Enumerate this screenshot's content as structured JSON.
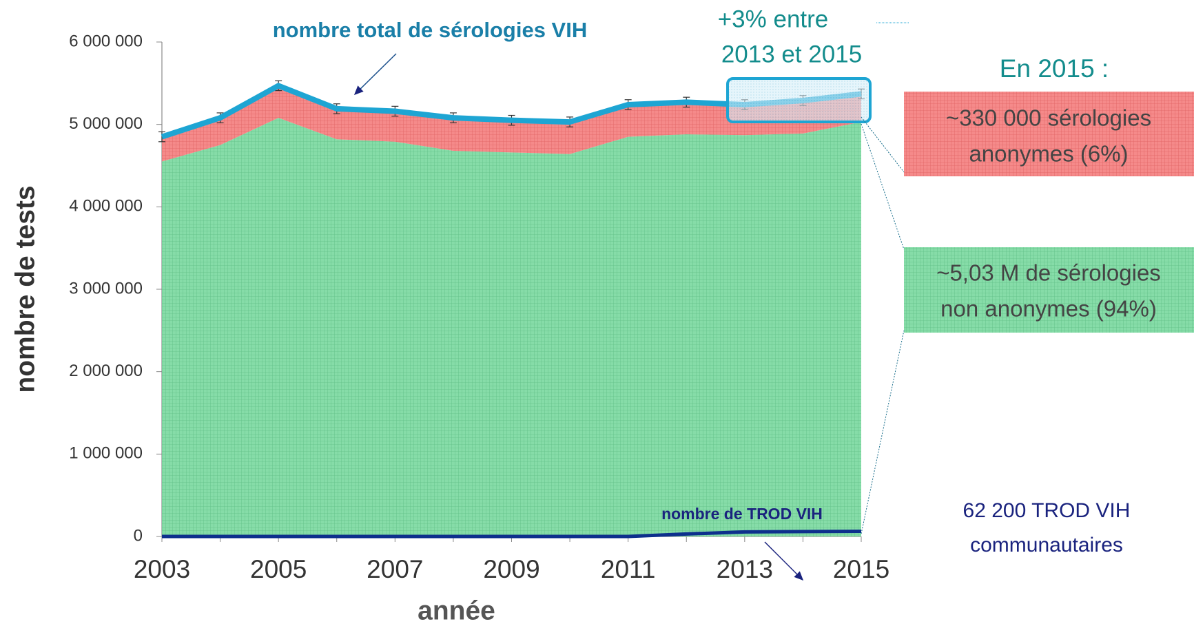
{
  "chart_data": {
    "type": "area",
    "x_label": "année",
    "y_label": "nombre de tests",
    "x": [
      2003,
      2004,
      2005,
      2006,
      2007,
      2008,
      2009,
      2010,
      2011,
      2012,
      2013,
      2014,
      2015
    ],
    "xlim": [
      2003,
      2015
    ],
    "xticks": [
      2003,
      2005,
      2007,
      2009,
      2011,
      2013,
      2015
    ],
    "ylim": [
      0,
      6000000
    ],
    "yticks": [
      0,
      {
        "value": 1000000,
        "label": "1 000 000"
      },
      {
        "value": 2000000,
        "label": "2 000 000"
      },
      {
        "value": 3000000,
        "label": "3 000 000"
      },
      {
        "value": 4000000,
        "label": "4 000 000"
      },
      {
        "value": 5000000,
        "label": "5 000 000"
      },
      {
        "value": 6000000,
        "label": "6 000 000"
      }
    ],
    "series": [
      {
        "color": "#86dca8",
        "stack": true,
        "values": [
          4550000,
          4750000,
          5080000,
          4820000,
          4790000,
          4680000,
          4660000,
          4640000,
          4850000,
          4880000,
          4870000,
          4890000,
          5030000
        ]
      },
      {
        "color": "#f58a8a",
        "stack": true,
        "values": [
          300000,
          330000,
          390000,
          370000,
          370000,
          400000,
          390000,
          390000,
          390000,
          390000,
          370000,
          400000,
          340000
        ]
      },
      {
        "color": "#1ea5d3",
        "values": [
          4850000,
          5080000,
          5470000,
          5190000,
          5160000,
          5080000,
          5050000,
          5030000,
          5240000,
          5270000,
          5240000,
          5290000,
          5370000
        ],
        "errors": [
          60000,
          60000,
          60000,
          60000,
          60000,
          60000,
          60000,
          60000,
          60000,
          60000,
          60000,
          60000,
          60000
        ]
      },
      {
        "color": "#0d2f8c",
        "values": [
          0,
          0,
          0,
          0,
          0,
          0,
          0,
          0,
          0,
          30000,
          55000,
          60000,
          62200
        ]
      }
    ],
    "annotations": [
      "nombre total de sérologies VIH",
      "+3% entre",
      "2013 et 2015",
      "nombre de TROD VIH"
    ],
    "side_notes": {
      "title": "En 2015 :",
      "anonymous": [
        "~330 000 sérologies",
        "anonymes (6%)"
      ],
      "non_anonymous": [
        "~5,03 M de sérologies",
        "non anonymes (94%)"
      ],
      "trod": [
        "62 200 TROD VIH",
        "communautaires"
      ]
    }
  }
}
